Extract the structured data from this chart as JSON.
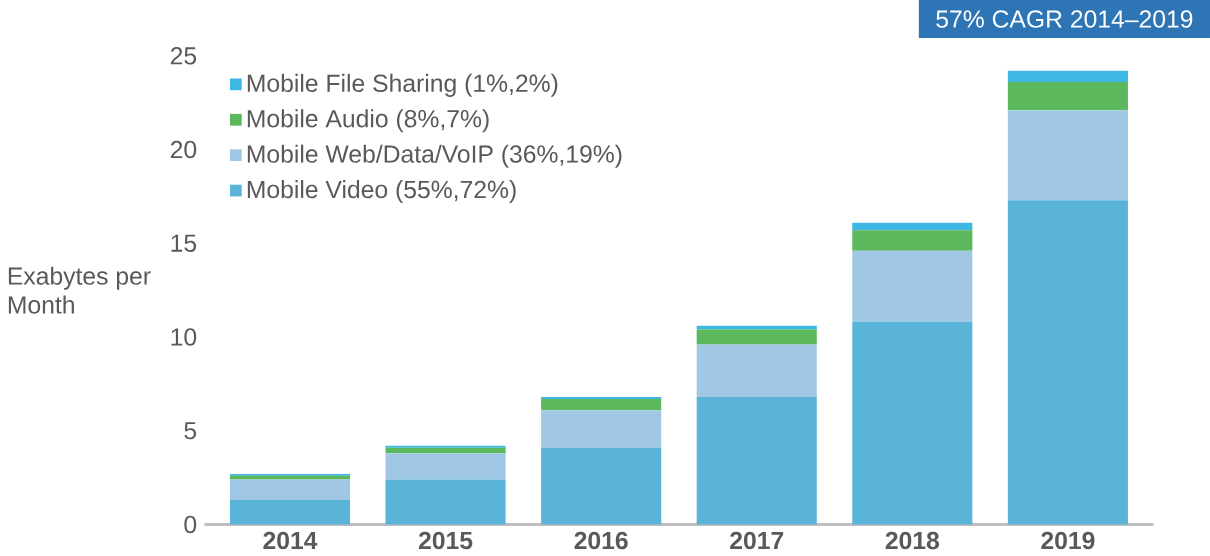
{
  "chart_data": {
    "type": "bar",
    "stacked": true,
    "ylabel": "Exabytes per Month",
    "categories": [
      "2014",
      "2015",
      "2016",
      "2017",
      "2018",
      "2019"
    ],
    "series": [
      {
        "name": "Mobile Video (55%,72%)",
        "color": "#5ab4d8",
        "values": [
          1.3,
          2.4,
          4.1,
          6.8,
          10.8,
          17.3
        ]
      },
      {
        "name": "Mobile Web/Data/VoIP (36%,19%)",
        "color": "#a0c8e4",
        "values": [
          1.1,
          1.4,
          2.0,
          2.8,
          3.8,
          4.8
        ]
      },
      {
        "name": "Mobile Audio (8%,7%)",
        "color": "#5cb85c",
        "values": [
          0.2,
          0.3,
          0.6,
          0.8,
          1.1,
          1.5
        ]
      },
      {
        "name": "Mobile File Sharing (1%,2%)",
        "color": "#3cb8e2",
        "values": [
          0.1,
          0.1,
          0.1,
          0.2,
          0.4,
          0.6
        ]
      }
    ],
    "ylim": [
      0,
      25
    ],
    "yticks": [
      0,
      5,
      10,
      15,
      20,
      25
    ],
    "grid": false,
    "legend": "top left",
    "annotations": [
      "57% CAGR 2014–2019"
    ]
  }
}
